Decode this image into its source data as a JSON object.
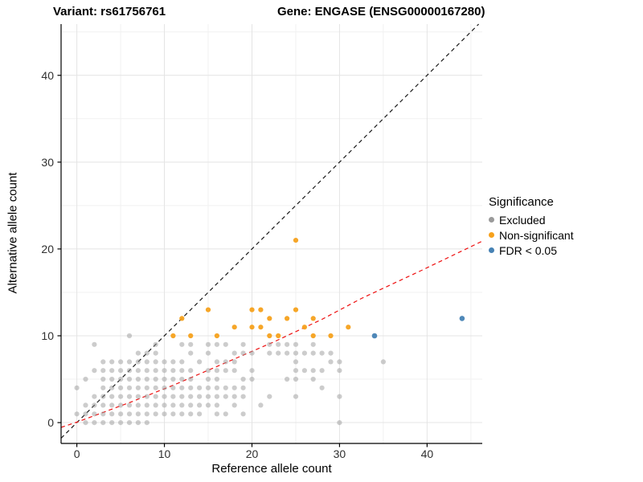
{
  "chart_data": {
    "type": "scatter",
    "titles": {
      "left": "Variant: rs61756761",
      "right": "Gene: ENGASE (ENSG00000167280)"
    },
    "xlabel": "Reference allele count",
    "ylabel": "Alternative allele count",
    "legend_title": "Significance",
    "legend_position": "right",
    "grid": true,
    "x_range": [
      -1.8,
      46.3
    ],
    "y_range": [
      -2.4,
      45.9
    ],
    "x_ticks": [
      0,
      10,
      20,
      30,
      40
    ],
    "y_ticks": [
      0,
      10,
      20,
      30,
      40
    ],
    "x_minor_ticks": [
      5,
      15,
      25,
      35,
      45
    ],
    "y_minor_ticks": [
      5,
      15,
      25,
      35,
      45
    ],
    "colors": {
      "grid_major": "#e4e4e4",
      "grid_minor": "#f1f1f1",
      "axis": "#000000"
    },
    "series": [
      {
        "name": "Excluded",
        "color": "#9a9a9a",
        "opacity": 0.5,
        "radius": 3.1,
        "points": [
          [
            1,
            0
          ],
          [
            2,
            0
          ],
          [
            3,
            0
          ],
          [
            4,
            0
          ],
          [
            5,
            0
          ],
          [
            6,
            0
          ],
          [
            7,
            0
          ],
          [
            8,
            0
          ],
          [
            30,
            0
          ],
          [
            0,
            1
          ],
          [
            1,
            1
          ],
          [
            2,
            1
          ],
          [
            3,
            1
          ],
          [
            4,
            1
          ],
          [
            5,
            1
          ],
          [
            6,
            1
          ],
          [
            7,
            1
          ],
          [
            8,
            1
          ],
          [
            9,
            1
          ],
          [
            10,
            1
          ],
          [
            11,
            1
          ],
          [
            12,
            1
          ],
          [
            13,
            1
          ],
          [
            14,
            1
          ],
          [
            16,
            1
          ],
          [
            17,
            1
          ],
          [
            19,
            1
          ],
          [
            1,
            2
          ],
          [
            2,
            2
          ],
          [
            3,
            2
          ],
          [
            4,
            2
          ],
          [
            5,
            2
          ],
          [
            6,
            2
          ],
          [
            7,
            2
          ],
          [
            8,
            2
          ],
          [
            9,
            2
          ],
          [
            10,
            2
          ],
          [
            11,
            2
          ],
          [
            12,
            2
          ],
          [
            13,
            2
          ],
          [
            14,
            2
          ],
          [
            15,
            2
          ],
          [
            16,
            2
          ],
          [
            18,
            2
          ],
          [
            21,
            2
          ],
          [
            2,
            3
          ],
          [
            3,
            3
          ],
          [
            4,
            3
          ],
          [
            5,
            3
          ],
          [
            6,
            3
          ],
          [
            7,
            3
          ],
          [
            8,
            3
          ],
          [
            9,
            3
          ],
          [
            10,
            3
          ],
          [
            11,
            3
          ],
          [
            12,
            3
          ],
          [
            13,
            3
          ],
          [
            14,
            3
          ],
          [
            15,
            3
          ],
          [
            16,
            3
          ],
          [
            17,
            3
          ],
          [
            18,
            3
          ],
          [
            19,
            3
          ],
          [
            22,
            3
          ],
          [
            25,
            3
          ],
          [
            30,
            3
          ],
          [
            0,
            4
          ],
          [
            3,
            4
          ],
          [
            4,
            4
          ],
          [
            5,
            4
          ],
          [
            6,
            4
          ],
          [
            7,
            4
          ],
          [
            8,
            4
          ],
          [
            9,
            4
          ],
          [
            10,
            4
          ],
          [
            11,
            4
          ],
          [
            12,
            4
          ],
          [
            13,
            4
          ],
          [
            14,
            4
          ],
          [
            15,
            4
          ],
          [
            16,
            4
          ],
          [
            17,
            4
          ],
          [
            18,
            4
          ],
          [
            19,
            4
          ],
          [
            28,
            4
          ],
          [
            1,
            5
          ],
          [
            3,
            5
          ],
          [
            4,
            5
          ],
          [
            5,
            5
          ],
          [
            6,
            5
          ],
          [
            7,
            5
          ],
          [
            8,
            5
          ],
          [
            9,
            5
          ],
          [
            10,
            5
          ],
          [
            11,
            5
          ],
          [
            12,
            5
          ],
          [
            13,
            5
          ],
          [
            15,
            5
          ],
          [
            16,
            5
          ],
          [
            19,
            5
          ],
          [
            20,
            5
          ],
          [
            24,
            5
          ],
          [
            25,
            5
          ],
          [
            27,
            5
          ],
          [
            2,
            6
          ],
          [
            3,
            6
          ],
          [
            4,
            6
          ],
          [
            5,
            6
          ],
          [
            6,
            6
          ],
          [
            7,
            6
          ],
          [
            8,
            6
          ],
          [
            9,
            6
          ],
          [
            10,
            6
          ],
          [
            11,
            6
          ],
          [
            12,
            6
          ],
          [
            13,
            6
          ],
          [
            15,
            6
          ],
          [
            16,
            6
          ],
          [
            17,
            6
          ],
          [
            18,
            6
          ],
          [
            20,
            6
          ],
          [
            25,
            6
          ],
          [
            26,
            6
          ],
          [
            27,
            6
          ],
          [
            28,
            6
          ],
          [
            30,
            6
          ],
          [
            3,
            7
          ],
          [
            4,
            7
          ],
          [
            5,
            7
          ],
          [
            6,
            7
          ],
          [
            7,
            7
          ],
          [
            8,
            7
          ],
          [
            9,
            7
          ],
          [
            10,
            7
          ],
          [
            11,
            7
          ],
          [
            12,
            7
          ],
          [
            14,
            7
          ],
          [
            16,
            7
          ],
          [
            17,
            7
          ],
          [
            18,
            7
          ],
          [
            25,
            7
          ],
          [
            29,
            7
          ],
          [
            30,
            7
          ],
          [
            35,
            7
          ],
          [
            7,
            8
          ],
          [
            8,
            8
          ],
          [
            9,
            8
          ],
          [
            13,
            8
          ],
          [
            15,
            8
          ],
          [
            18,
            8
          ],
          [
            19,
            8
          ],
          [
            20,
            8
          ],
          [
            22,
            8
          ],
          [
            23,
            8
          ],
          [
            24,
            8
          ],
          [
            25,
            8
          ],
          [
            26,
            8
          ],
          [
            27,
            8
          ],
          [
            28,
            8
          ],
          [
            29,
            8
          ],
          [
            2,
            9
          ],
          [
            9,
            9
          ],
          [
            12,
            9
          ],
          [
            13,
            9
          ],
          [
            15,
            9
          ],
          [
            16,
            9
          ],
          [
            17,
            9
          ],
          [
            19,
            9
          ],
          [
            22,
            9
          ],
          [
            23,
            9
          ],
          [
            24,
            9
          ],
          [
            25,
            9
          ],
          [
            27,
            9
          ],
          [
            6,
            10
          ]
        ]
      },
      {
        "name": "Non-significant",
        "color": "#f6a11c",
        "opacity": 0.95,
        "radius": 3.1,
        "points": [
          [
            11,
            10
          ],
          [
            13,
            10
          ],
          [
            16,
            10
          ],
          [
            22,
            10
          ],
          [
            23,
            10
          ],
          [
            27,
            10
          ],
          [
            29,
            10
          ],
          [
            18,
            11
          ],
          [
            20,
            11
          ],
          [
            21,
            11
          ],
          [
            26,
            11
          ],
          [
            31,
            11
          ],
          [
            12,
            12
          ],
          [
            22,
            12
          ],
          [
            24,
            12
          ],
          [
            27,
            12
          ],
          [
            15,
            13
          ],
          [
            20,
            13
          ],
          [
            21,
            13
          ],
          [
            25,
            13
          ],
          [
            25,
            21
          ]
        ]
      },
      {
        "name": "FDR < 0.05",
        "color": "#4682b4",
        "opacity": 0.95,
        "radius": 3.3,
        "points": [
          [
            34,
            10
          ],
          [
            44,
            12
          ]
        ]
      }
    ],
    "reference_lines": [
      {
        "name": "identity-line",
        "color": "#1a1a1a",
        "style": "dashed",
        "width": 1.2,
        "points": [
          [
            -1.8,
            -1.8
          ],
          [
            45.9,
            45.9
          ]
        ]
      },
      {
        "name": "fitted-line",
        "color": "#ee1111",
        "style": "dashed",
        "width": 1.2,
        "points": [
          [
            -1.8,
            -0.55
          ],
          [
            0,
            0.05
          ],
          [
            6,
            2.3
          ],
          [
            11,
            4.3
          ],
          [
            17,
            6.9
          ],
          [
            22.5,
            9.3
          ],
          [
            28,
            11.9
          ],
          [
            32.5,
            14.3
          ],
          [
            39.5,
            17.6
          ],
          [
            46.3,
            20.9
          ]
        ]
      }
    ]
  }
}
